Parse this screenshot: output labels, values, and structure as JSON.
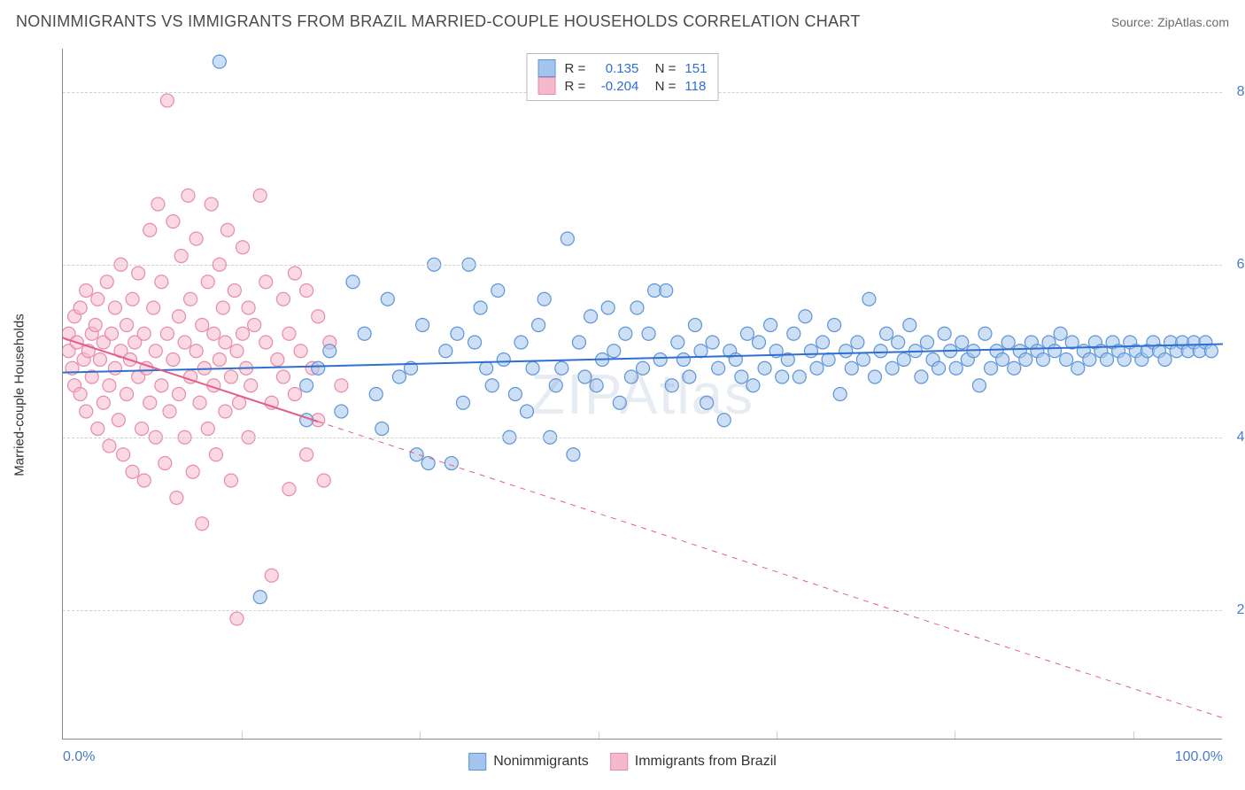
{
  "title": "NONIMMIGRANTS VS IMMIGRANTS FROM BRAZIL MARRIED-COUPLE HOUSEHOLDS CORRELATION CHART",
  "source_label": "Source: ZipAtlas.com",
  "watermark": "ZIPAtlas",
  "ylabel": "Married-couple Households",
  "chart": {
    "type": "scatter",
    "background_color": "#ffffff",
    "grid_color": "#d0d0d0",
    "axis_color": "#888888",
    "tick_label_color": "#4a7cc4",
    "axis_label_fontsize": 15,
    "tick_fontsize": 16,
    "title_fontsize": 18,
    "title_color": "#4a4a4a",
    "xlim": [
      0,
      100
    ],
    "ylim": [
      5,
      85
    ],
    "xticks": [
      0,
      100
    ],
    "xtick_labels": [
      "0.0%",
      "100.0%"
    ],
    "xtick_minor": [
      15.4,
      30.8,
      46.2,
      61.5,
      76.9,
      92.3
    ],
    "yticks": [
      20,
      40,
      60,
      80
    ],
    "ytick_labels": [
      "20.0%",
      "40.0%",
      "60.0%",
      "80.0%"
    ],
    "marker_radius": 7.5,
    "marker_opacity": 0.55,
    "marker_stroke_width": 1.2,
    "series": [
      {
        "name": "Nonimmigrants",
        "fill_color": "#a3c4ed",
        "stroke_color": "#5d95d8",
        "line_color": "#2f6fd0",
        "line_width": 2,
        "R": "0.135",
        "N": "151",
        "trend": {
          "x1": 0,
          "y1": 47.5,
          "x2": 100,
          "y2": 50.8
        },
        "points": [
          [
            13.5,
            83.5
          ],
          [
            17,
            21.5
          ],
          [
            21,
            42
          ],
          [
            21,
            46
          ],
          [
            22,
            48
          ],
          [
            23,
            50
          ],
          [
            24,
            43
          ],
          [
            25,
            58
          ],
          [
            26,
            52
          ],
          [
            27,
            45
          ],
          [
            27.5,
            41
          ],
          [
            28,
            56
          ],
          [
            29,
            47
          ],
          [
            30,
            48
          ],
          [
            30.5,
            38
          ],
          [
            31,
            53
          ],
          [
            31.5,
            37
          ],
          [
            32,
            60
          ],
          [
            33,
            50
          ],
          [
            33.5,
            37
          ],
          [
            34,
            52
          ],
          [
            34.5,
            44
          ],
          [
            35,
            60
          ],
          [
            35.5,
            51
          ],
          [
            36,
            55
          ],
          [
            36.5,
            48
          ],
          [
            37,
            46
          ],
          [
            37.5,
            57
          ],
          [
            38,
            49
          ],
          [
            38.5,
            40
          ],
          [
            39,
            45
          ],
          [
            39.5,
            51
          ],
          [
            40,
            43
          ],
          [
            40.5,
            48
          ],
          [
            41,
            53
          ],
          [
            41.5,
            56
          ],
          [
            42,
            40
          ],
          [
            42.5,
            46
          ],
          [
            43,
            48
          ],
          [
            43.5,
            63
          ],
          [
            44,
            38
          ],
          [
            44.5,
            51
          ],
          [
            45,
            47
          ],
          [
            45.5,
            54
          ],
          [
            46,
            46
          ],
          [
            46.5,
            49
          ],
          [
            47,
            55
          ],
          [
            47.5,
            50
          ],
          [
            48,
            44
          ],
          [
            48.5,
            52
          ],
          [
            49,
            47
          ],
          [
            49.5,
            55
          ],
          [
            50,
            48
          ],
          [
            50.5,
            52
          ],
          [
            51,
            57
          ],
          [
            51.5,
            49
          ],
          [
            52,
            57
          ],
          [
            52.5,
            46
          ],
          [
            53,
            51
          ],
          [
            53.5,
            49
          ],
          [
            54,
            47
          ],
          [
            54.5,
            53
          ],
          [
            55,
            50
          ],
          [
            55.5,
            44
          ],
          [
            56,
            51
          ],
          [
            56.5,
            48
          ],
          [
            57,
            42
          ],
          [
            57.5,
            50
          ],
          [
            58,
            49
          ],
          [
            58.5,
            47
          ],
          [
            59,
            52
          ],
          [
            59.5,
            46
          ],
          [
            60,
            51
          ],
          [
            60.5,
            48
          ],
          [
            61,
            53
          ],
          [
            61.5,
            50
          ],
          [
            62,
            47
          ],
          [
            62.5,
            49
          ],
          [
            63,
            52
          ],
          [
            63.5,
            47
          ],
          [
            64,
            54
          ],
          [
            64.5,
            50
          ],
          [
            65,
            48
          ],
          [
            65.5,
            51
          ],
          [
            66,
            49
          ],
          [
            66.5,
            53
          ],
          [
            67,
            45
          ],
          [
            67.5,
            50
          ],
          [
            68,
            48
          ],
          [
            68.5,
            51
          ],
          [
            69,
            49
          ],
          [
            69.5,
            56
          ],
          [
            70,
            47
          ],
          [
            70.5,
            50
          ],
          [
            71,
            52
          ],
          [
            71.5,
            48
          ],
          [
            72,
            51
          ],
          [
            72.5,
            49
          ],
          [
            73,
            53
          ],
          [
            73.5,
            50
          ],
          [
            74,
            47
          ],
          [
            74.5,
            51
          ],
          [
            75,
            49
          ],
          [
            75.5,
            48
          ],
          [
            76,
            52
          ],
          [
            76.5,
            50
          ],
          [
            77,
            48
          ],
          [
            77.5,
            51
          ],
          [
            78,
            49
          ],
          [
            78.5,
            50
          ],
          [
            79,
            46
          ],
          [
            79.5,
            52
          ],
          [
            80,
            48
          ],
          [
            80.5,
            50
          ],
          [
            81,
            49
          ],
          [
            81.5,
            51
          ],
          [
            82,
            48
          ],
          [
            82.5,
            50
          ],
          [
            83,
            49
          ],
          [
            83.5,
            51
          ],
          [
            84,
            50
          ],
          [
            84.5,
            49
          ],
          [
            85,
            51
          ],
          [
            85.5,
            50
          ],
          [
            86,
            52
          ],
          [
            86.5,
            49
          ],
          [
            87,
            51
          ],
          [
            87.5,
            48
          ],
          [
            88,
            50
          ],
          [
            88.5,
            49
          ],
          [
            89,
            51
          ],
          [
            89.5,
            50
          ],
          [
            90,
            49
          ],
          [
            90.5,
            51
          ],
          [
            91,
            50
          ],
          [
            91.5,
            49
          ],
          [
            92,
            51
          ],
          [
            92.5,
            50
          ],
          [
            93,
            49
          ],
          [
            93.5,
            50
          ],
          [
            94,
            51
          ],
          [
            94.5,
            50
          ],
          [
            95,
            49
          ],
          [
            95.5,
            51
          ],
          [
            96,
            50
          ],
          [
            96.5,
            51
          ],
          [
            97,
            50
          ],
          [
            97.5,
            51
          ],
          [
            98,
            50
          ],
          [
            98.5,
            51
          ],
          [
            99,
            50
          ]
        ]
      },
      {
        "name": "Immigrants from Brazil",
        "fill_color": "#f6b9cc",
        "stroke_color": "#e88ba9",
        "line_color": "#e55c8a",
        "line_width": 2,
        "R": "-0.204",
        "N": "118",
        "trend": {
          "x1": 0,
          "y1": 51.5,
          "x2": 100,
          "y2": 7.5
        },
        "trend_solid_until_x": 22,
        "points": [
          [
            0.5,
            50
          ],
          [
            0.5,
            52
          ],
          [
            0.8,
            48
          ],
          [
            1,
            54
          ],
          [
            1,
            46
          ],
          [
            1.2,
            51
          ],
          [
            1.5,
            55
          ],
          [
            1.5,
            45
          ],
          [
            1.8,
            49
          ],
          [
            2,
            57
          ],
          [
            2,
            43
          ],
          [
            2.2,
            50
          ],
          [
            2.5,
            52
          ],
          [
            2.5,
            47
          ],
          [
            2.8,
            53
          ],
          [
            3,
            41
          ],
          [
            3,
            56
          ],
          [
            3.2,
            49
          ],
          [
            3.5,
            44
          ],
          [
            3.5,
            51
          ],
          [
            3.8,
            58
          ],
          [
            4,
            46
          ],
          [
            4,
            39
          ],
          [
            4.2,
            52
          ],
          [
            4.5,
            55
          ],
          [
            4.5,
            48
          ],
          [
            4.8,
            42
          ],
          [
            5,
            50
          ],
          [
            5,
            60
          ],
          [
            5.2,
            38
          ],
          [
            5.5,
            53
          ],
          [
            5.5,
            45
          ],
          [
            5.8,
            49
          ],
          [
            6,
            56
          ],
          [
            6,
            36
          ],
          [
            6.2,
            51
          ],
          [
            6.5,
            47
          ],
          [
            6.5,
            59
          ],
          [
            6.8,
            41
          ],
          [
            7,
            52
          ],
          [
            7,
            35
          ],
          [
            7.2,
            48
          ],
          [
            7.5,
            64
          ],
          [
            7.5,
            44
          ],
          [
            7.8,
            55
          ],
          [
            8,
            50
          ],
          [
            8,
            40
          ],
          [
            8.2,
            67
          ],
          [
            8.5,
            46
          ],
          [
            8.5,
            58
          ],
          [
            8.8,
            37
          ],
          [
            9,
            52
          ],
          [
            9,
            79
          ],
          [
            9.2,
            43
          ],
          [
            9.5,
            65
          ],
          [
            9.5,
            49
          ],
          [
            9.8,
            33
          ],
          [
            10,
            54
          ],
          [
            10,
            45
          ],
          [
            10.2,
            61
          ],
          [
            10.5,
            40
          ],
          [
            10.5,
            51
          ],
          [
            10.8,
            68
          ],
          [
            11,
            47
          ],
          [
            11,
            56
          ],
          [
            11.2,
            36
          ],
          [
            11.5,
            50
          ],
          [
            11.5,
            63
          ],
          [
            11.8,
            44
          ],
          [
            12,
            53
          ],
          [
            12,
            30
          ],
          [
            12.2,
            48
          ],
          [
            12.5,
            58
          ],
          [
            12.5,
            41
          ],
          [
            12.8,
            67
          ],
          [
            13,
            46
          ],
          [
            13,
            52
          ],
          [
            13.2,
            38
          ],
          [
            13.5,
            60
          ],
          [
            13.5,
            49
          ],
          [
            13.8,
            55
          ],
          [
            14,
            43
          ],
          [
            14,
            51
          ],
          [
            14.2,
            64
          ],
          [
            14.5,
            47
          ],
          [
            14.5,
            35
          ],
          [
            14.8,
            57
          ],
          [
            15,
            50
          ],
          [
            15,
            19
          ],
          [
            15.2,
            44
          ],
          [
            15.5,
            52
          ],
          [
            15.5,
            62
          ],
          [
            15.8,
            48
          ],
          [
            16,
            40
          ],
          [
            16,
            55
          ],
          [
            16.2,
            46
          ],
          [
            16.5,
            53
          ],
          [
            17,
            68
          ],
          [
            17.5,
            51
          ],
          [
            17.5,
            58
          ],
          [
            18,
            44
          ],
          [
            18,
            24
          ],
          [
            18.5,
            49
          ],
          [
            19,
            56
          ],
          [
            19,
            47
          ],
          [
            19.5,
            34
          ],
          [
            19.5,
            52
          ],
          [
            20,
            59
          ],
          [
            20,
            45
          ],
          [
            20.5,
            50
          ],
          [
            21,
            38
          ],
          [
            21,
            57
          ],
          [
            21.5,
            48
          ],
          [
            22,
            54
          ],
          [
            22,
            42
          ],
          [
            22.5,
            35
          ],
          [
            23,
            51
          ],
          [
            24,
            46
          ]
        ]
      }
    ],
    "bottom_legend": [
      {
        "label": "Nonimmigrants",
        "fill": "#a3c4ed",
        "stroke": "#5d95d8"
      },
      {
        "label": "Immigrants from Brazil",
        "fill": "#f6b9cc",
        "stroke": "#e88ba9"
      }
    ]
  }
}
